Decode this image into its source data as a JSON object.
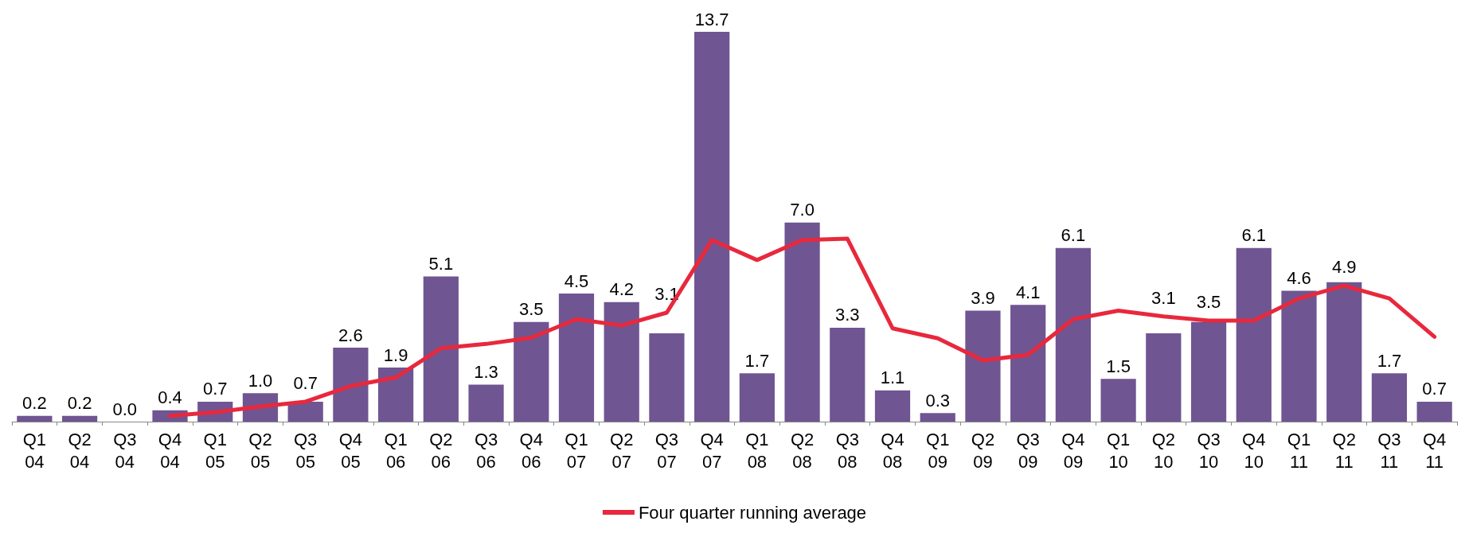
{
  "chart_data": {
    "type": "bar",
    "categories": [
      "Q1 04",
      "Q2 04",
      "Q3 04",
      "Q4 04",
      "Q1 05",
      "Q2 05",
      "Q3 05",
      "Q4 05",
      "Q1 06",
      "Q2 06",
      "Q3 06",
      "Q4 06",
      "Q1 07",
      "Q2 07",
      "Q3 07",
      "Q4 07",
      "Q1 08",
      "Q2 08",
      "Q3 08",
      "Q4 08",
      "Q1 09",
      "Q2 09",
      "Q3 09",
      "Q4 09",
      "Q1 10",
      "Q2 10",
      "Q3 10",
      "Q4 10",
      "Q1 11",
      "Q2 11",
      "Q3 11",
      "Q4 11"
    ],
    "series": [
      {
        "color": "#6f5592",
        "values": [
          0.2,
          0.2,
          0.0,
          0.4,
          0.7,
          1.0,
          0.7,
          2.6,
          1.9,
          5.1,
          1.3,
          3.5,
          4.5,
          4.2,
          3.1,
          13.7,
          1.7,
          7.0,
          3.3,
          1.1,
          0.3,
          3.9,
          4.1,
          6.1,
          1.5,
          3.1,
          3.5,
          6.1,
          4.6,
          4.9,
          1.7,
          0.7
        ],
        "value_labels": [
          "0.2",
          "0.2",
          "0.0",
          "0.4",
          "0.7",
          "1.0",
          "0.7",
          "2.6",
          "1.9",
          "5.1",
          "1.3",
          "3.5",
          "4.5",
          "4.2",
          "3.1",
          "13.7",
          "1.7",
          "7.0",
          "3.3",
          "1.1",
          "0.3",
          "3.9",
          "4.1",
          "6.1",
          "1.5",
          "3.1",
          "3.5",
          "6.1",
          "4.6",
          "4.9",
          "1.7",
          "0.7"
        ]
      },
      {
        "type": "line",
        "name": "Four quarter running average",
        "color": "#e8283c",
        "values": [
          null,
          null,
          null,
          0.2,
          0.33,
          0.53,
          0.7,
          1.25,
          1.55,
          2.58,
          2.73,
          2.95,
          3.6,
          3.38,
          3.83,
          6.38,
          5.68,
          6.38,
          6.43,
          3.28,
          2.93,
          2.15,
          2.35,
          3.6,
          3.9,
          3.7,
          3.55,
          3.55,
          4.33,
          4.78,
          4.33,
          2.98
        ]
      }
    ],
    "legend": "bottom",
    "grid": false,
    "marker": "none",
    "line_style": "solid"
  }
}
